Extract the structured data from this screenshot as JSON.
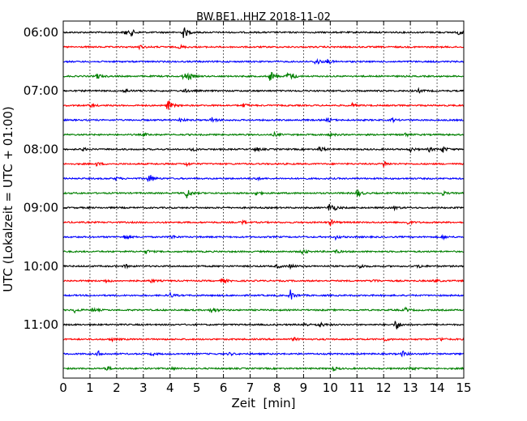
{
  "chart_data": {
    "type": "line",
    "title": "BW.BE1..HHZ 2018-11-02",
    "xlabel": "Zeit  [min]",
    "ylabel": "UTC (Lokalzeit = UTC + 01:00)",
    "xlim": [
      0,
      15
    ],
    "x_ticks": [
      "0",
      "1",
      "2",
      "3",
      "4",
      "5",
      "6",
      "7",
      "8",
      "9",
      "10",
      "11",
      "12",
      "13",
      "14",
      "15"
    ],
    "y_ticks": [
      "06:00",
      "07:00",
      "08:00",
      "09:00",
      "10:00",
      "11:00"
    ],
    "grid": "vertical dotted",
    "trace_minutes": 15,
    "colors": [
      "#000000",
      "#ff0000",
      "#0000ff",
      "#008000"
    ],
    "series": [
      {
        "start": "06:00",
        "events": [
          [
            2.3,
            0.4
          ],
          [
            2.55,
            0.45
          ],
          [
            4.5,
            1.0
          ],
          [
            14.8,
            0.4
          ]
        ]
      },
      {
        "start": "06:15",
        "events": [
          [
            2.85,
            0.3
          ],
          [
            4.35,
            0.3
          ]
        ]
      },
      {
        "start": "06:30",
        "events": [
          [
            9.45,
            0.7
          ],
          [
            9.9,
            0.35
          ]
        ]
      },
      {
        "start": "06:45",
        "events": [
          [
            1.25,
            0.5
          ],
          [
            4.5,
            0.6
          ],
          [
            4.7,
            0.5
          ],
          [
            7.75,
            1.0
          ],
          [
            8.4,
            0.7
          ],
          [
            8.6,
            0.3
          ]
        ]
      },
      {
        "start": "07:00",
        "events": [
          [
            2.3,
            0.4
          ],
          [
            4.5,
            0.35
          ],
          [
            13.3,
            0.3
          ]
        ]
      },
      {
        "start": "07:15",
        "events": [
          [
            1.0,
            0.3
          ],
          [
            3.9,
            1.0
          ],
          [
            6.75,
            0.35
          ],
          [
            10.8,
            0.3
          ]
        ]
      },
      {
        "start": "07:30",
        "events": [
          [
            4.35,
            0.35
          ],
          [
            5.55,
            0.5
          ],
          [
            9.9,
            0.35
          ],
          [
            12.3,
            0.3
          ]
        ]
      },
      {
        "start": "07:45",
        "events": [
          [
            3.0,
            0.25
          ],
          [
            7.9,
            0.3
          ],
          [
            10.0,
            0.3
          ],
          [
            12.8,
            0.3
          ]
        ]
      },
      {
        "start": "08:00",
        "events": [
          [
            0.7,
            0.3
          ],
          [
            4.8,
            0.3
          ],
          [
            7.2,
            0.35
          ],
          [
            9.6,
            0.6
          ],
          [
            13.0,
            0.35
          ],
          [
            13.7,
            0.35
          ],
          [
            14.2,
            0.55
          ]
        ]
      },
      {
        "start": "08:15",
        "events": [
          [
            1.25,
            0.3
          ],
          [
            4.6,
            0.3
          ],
          [
            12.0,
            0.5
          ]
        ]
      },
      {
        "start": "08:30",
        "events": [
          [
            1.95,
            0.3
          ],
          [
            3.2,
            1.0
          ],
          [
            7.2,
            0.3
          ]
        ]
      },
      {
        "start": "08:45",
        "events": [
          [
            4.6,
            1.0
          ],
          [
            7.2,
            0.35
          ],
          [
            11.0,
            0.7
          ],
          [
            14.2,
            0.3
          ]
        ]
      },
      {
        "start": "09:00",
        "events": [
          [
            9.95,
            0.7
          ],
          [
            10.1,
            0.35
          ],
          [
            12.4,
            0.3
          ]
        ]
      },
      {
        "start": "09:15",
        "events": [
          [
            6.7,
            0.3
          ],
          [
            10.0,
            0.5
          ],
          [
            12.9,
            0.3
          ]
        ]
      },
      {
        "start": "09:30",
        "events": [
          [
            2.3,
            0.5
          ],
          [
            4.05,
            0.3
          ],
          [
            10.2,
            0.3
          ],
          [
            14.2,
            0.3
          ]
        ]
      },
      {
        "start": "09:45",
        "events": [
          [
            3.1,
            0.3
          ],
          [
            8.95,
            0.45
          ],
          [
            10.2,
            0.3
          ]
        ]
      },
      {
        "start": "10:00",
        "events": [
          [
            2.3,
            0.3
          ],
          [
            8.0,
            0.3
          ],
          [
            8.5,
            0.35
          ],
          [
            11.1,
            0.35
          ],
          [
            13.3,
            0.3
          ]
        ]
      },
      {
        "start": "10:15",
        "events": [
          [
            1.6,
            0.3
          ],
          [
            3.25,
            0.3
          ],
          [
            5.95,
            0.45
          ],
          [
            11.6,
            0.3
          ],
          [
            13.9,
            0.3
          ]
        ]
      },
      {
        "start": "10:30",
        "events": [
          [
            4.0,
            0.4
          ],
          [
            8.5,
            0.9
          ]
        ]
      },
      {
        "start": "10:45",
        "events": [
          [
            0.4,
            0.4
          ],
          [
            1.1,
            0.35
          ],
          [
            5.55,
            0.7
          ],
          [
            12.8,
            0.35
          ]
        ]
      },
      {
        "start": "11:00",
        "events": [
          [
            9.0,
            0.35
          ],
          [
            9.55,
            0.6
          ],
          [
            12.45,
            1.0
          ]
        ]
      },
      {
        "start": "11:15",
        "events": [
          [
            1.8,
            0.3
          ],
          [
            8.6,
            0.3
          ],
          [
            12.0,
            0.3
          ],
          [
            14.1,
            0.3
          ]
        ]
      },
      {
        "start": "11:30",
        "events": [
          [
            1.3,
            0.45
          ],
          [
            3.3,
            0.25
          ],
          [
            6.2,
            0.25
          ],
          [
            12.7,
            0.45
          ]
        ]
      },
      {
        "start": "11:45",
        "events": [
          [
            1.6,
            0.4
          ],
          [
            4.0,
            0.25
          ],
          [
            10.1,
            0.35
          ],
          [
            13.0,
            0.3
          ]
        ]
      }
    ]
  }
}
